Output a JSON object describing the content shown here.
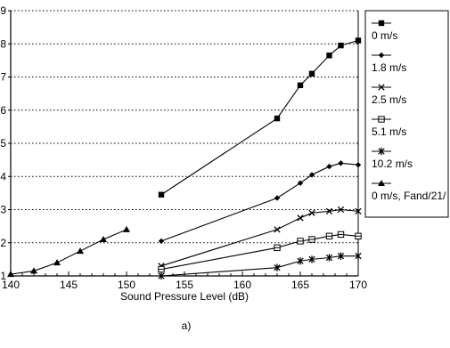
{
  "chart_data": {
    "type": "line",
    "title": "",
    "xlabel": "Sound Pressure Level (dB)",
    "ylabel": "",
    "xlim": [
      140,
      170
    ],
    "ylim": [
      1,
      9
    ],
    "xticks": [
      140,
      145,
      150,
      155,
      160,
      165,
      170
    ],
    "yticks": [
      1,
      2,
      3,
      4,
      5,
      6,
      7,
      8,
      9
    ],
    "grid": "horizontal dotted",
    "legend_position": "right",
    "caption": "a)",
    "series": [
      {
        "name": "0 m/s",
        "marker": "square-filled",
        "x": [
          153,
          163,
          165,
          166,
          167.5,
          168.5,
          170
        ],
        "y": [
          3.45,
          5.75,
          6.75,
          7.1,
          7.65,
          7.95,
          8.1
        ]
      },
      {
        "name": "1.8 m/s",
        "marker": "diamond-filled",
        "x": [
          153,
          163,
          165,
          166,
          167.5,
          168.5,
          170
        ],
        "y": [
          2.05,
          3.35,
          3.8,
          4.05,
          4.3,
          4.4,
          4.35
        ]
      },
      {
        "name": "2.5 m/s",
        "marker": "x",
        "x": [
          153,
          163,
          165,
          166,
          167.5,
          168.5,
          170
        ],
        "y": [
          1.3,
          2.4,
          2.75,
          2.9,
          2.95,
          3.0,
          2.95
        ]
      },
      {
        "name": "5.1 m/s",
        "marker": "square-open",
        "x": [
          153,
          163,
          165,
          166,
          167.5,
          168.5,
          170
        ],
        "y": [
          1.2,
          1.85,
          2.05,
          2.1,
          2.2,
          2.25,
          2.2
        ]
      },
      {
        "name": "10.2 m/s",
        "marker": "asterisk",
        "x": [
          153,
          163,
          165,
          166,
          167.5,
          168.5,
          170
        ],
        "y": [
          1.0,
          1.25,
          1.45,
          1.5,
          1.55,
          1.6,
          1.6
        ]
      },
      {
        "name": "0 m/s, Fand/21/",
        "marker": "triangle-filled",
        "x": [
          140,
          142,
          144,
          146,
          148,
          150
        ],
        "y": [
          1.05,
          1.15,
          1.4,
          1.75,
          2.1,
          2.4
        ]
      }
    ]
  }
}
